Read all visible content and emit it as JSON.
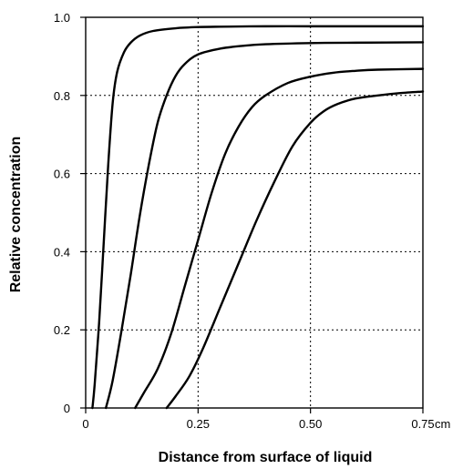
{
  "chart_data": {
    "type": "line",
    "xlabel": "Distance from surface of liquid",
    "ylabel": "Relative concentration",
    "x_unit": "cm",
    "xlim": [
      0,
      0.75
    ],
    "ylim": [
      0,
      1.0
    ],
    "x_ticks": [
      0,
      0.25,
      0.5,
      0.75
    ],
    "x_tick_labels": [
      "0",
      "0.25",
      "0.50",
      "0.75"
    ],
    "y_ticks": [
      0,
      0.2,
      0.4,
      0.6,
      0.8,
      1.0
    ],
    "y_tick_labels": [
      "0",
      "0.2",
      "0.4",
      "0.6",
      "0.8",
      "1.0"
    ],
    "grid": "dotted",
    "series": [
      {
        "x": [
          0.015,
          0.02,
          0.03,
          0.04,
          0.05,
          0.06,
          0.07,
          0.085,
          0.1,
          0.12,
          0.15,
          0.2,
          0.25,
          0.3,
          0.4,
          0.5,
          0.6,
          0.75
        ],
        "y": [
          0.0,
          0.06,
          0.22,
          0.42,
          0.62,
          0.78,
          0.86,
          0.91,
          0.935,
          0.953,
          0.965,
          0.972,
          0.975,
          0.976,
          0.977,
          0.977,
          0.977,
          0.977
        ]
      },
      {
        "x": [
          0.045,
          0.06,
          0.08,
          0.1,
          0.12,
          0.14,
          0.16,
          0.18,
          0.2,
          0.22,
          0.25,
          0.3,
          0.35,
          0.4,
          0.5,
          0.6,
          0.75
        ],
        "y": [
          0.0,
          0.07,
          0.2,
          0.34,
          0.49,
          0.62,
          0.73,
          0.8,
          0.85,
          0.88,
          0.905,
          0.92,
          0.927,
          0.931,
          0.934,
          0.935,
          0.936
        ]
      },
      {
        "x": [
          0.11,
          0.13,
          0.16,
          0.19,
          0.22,
          0.25,
          0.28,
          0.31,
          0.34,
          0.37,
          0.4,
          0.45,
          0.5,
          0.55,
          0.6,
          0.65,
          0.75
        ],
        "y": [
          0.0,
          0.04,
          0.1,
          0.19,
          0.31,
          0.43,
          0.55,
          0.65,
          0.72,
          0.77,
          0.8,
          0.832,
          0.848,
          0.858,
          0.863,
          0.866,
          0.868
        ]
      },
      {
        "x": [
          0.18,
          0.2,
          0.23,
          0.26,
          0.3,
          0.34,
          0.38,
          0.42,
          0.46,
          0.5,
          0.53,
          0.56,
          0.6,
          0.65,
          0.7,
          0.75
        ],
        "y": [
          0.0,
          0.03,
          0.08,
          0.15,
          0.26,
          0.37,
          0.48,
          0.58,
          0.67,
          0.73,
          0.76,
          0.778,
          0.792,
          0.8,
          0.806,
          0.81
        ]
      }
    ]
  }
}
